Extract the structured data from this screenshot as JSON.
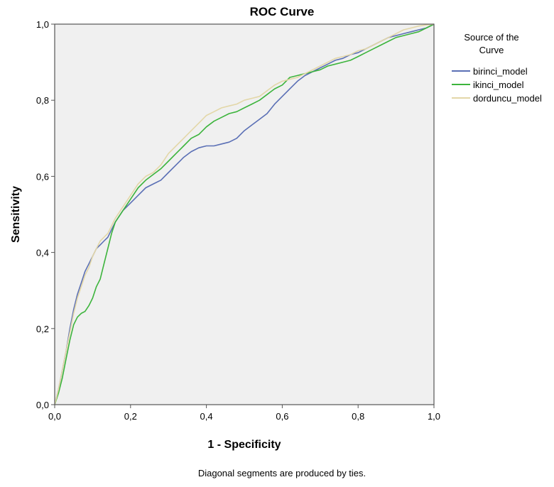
{
  "chart_data": {
    "type": "line",
    "title": "ROC Curve",
    "xlabel": "1 - Specificity",
    "ylabel": "Sensitivity",
    "xlim": [
      0,
      1
    ],
    "ylim": [
      0,
      1
    ],
    "x_ticks": [
      0,
      0.2,
      0.4,
      0.6,
      0.8,
      1.0
    ],
    "x_tick_labels": [
      "0,0",
      "0,2",
      "0,4",
      "0,6",
      "0,8",
      "1,0"
    ],
    "y_ticks": [
      0,
      0.2,
      0.4,
      0.6,
      0.8,
      1.0
    ],
    "y_tick_labels": [
      "0,0",
      "0,2",
      "0,4",
      "0,6",
      "0,8",
      "1,0"
    ],
    "grid": false,
    "plot_background": "#f0f0f0",
    "legend": {
      "title": "Source of the Curve",
      "title_lines": [
        "Source of the",
        "Curve"
      ],
      "placement": "right"
    },
    "footnote": "Diagonal segments are produced by ties.",
    "series": [
      {
        "name": "birinci_model",
        "color": "#5a6fb5",
        "x": [
          0,
          0.01,
          0.02,
          0.03,
          0.04,
          0.05,
          0.06,
          0.07,
          0.08,
          0.09,
          0.1,
          0.11,
          0.12,
          0.13,
          0.14,
          0.15,
          0.16,
          0.18,
          0.2,
          0.22,
          0.24,
          0.26,
          0.28,
          0.3,
          0.32,
          0.34,
          0.36,
          0.38,
          0.4,
          0.42,
          0.44,
          0.46,
          0.48,
          0.5,
          0.52,
          0.54,
          0.56,
          0.58,
          0.6,
          0.62,
          0.64,
          0.66,
          0.68,
          0.7,
          0.72,
          0.74,
          0.76,
          0.78,
          0.8,
          0.82,
          0.84,
          0.86,
          0.88,
          0.9,
          0.92,
          0.94,
          0.96,
          0.98,
          1.0
        ],
        "y": [
          0,
          0.04,
          0.09,
          0.14,
          0.2,
          0.25,
          0.29,
          0.32,
          0.35,
          0.37,
          0.39,
          0.41,
          0.42,
          0.43,
          0.44,
          0.46,
          0.48,
          0.51,
          0.53,
          0.55,
          0.57,
          0.58,
          0.59,
          0.61,
          0.63,
          0.65,
          0.665,
          0.675,
          0.68,
          0.68,
          0.685,
          0.69,
          0.7,
          0.72,
          0.735,
          0.75,
          0.765,
          0.79,
          0.81,
          0.83,
          0.85,
          0.865,
          0.875,
          0.885,
          0.895,
          0.905,
          0.91,
          0.92,
          0.925,
          0.935,
          0.945,
          0.955,
          0.965,
          0.97,
          0.975,
          0.98,
          0.985,
          0.99,
          1.0
        ]
      },
      {
        "name": "ikinci_model",
        "color": "#3cb43c",
        "x": [
          0,
          0.01,
          0.02,
          0.03,
          0.04,
          0.05,
          0.06,
          0.07,
          0.08,
          0.09,
          0.1,
          0.11,
          0.12,
          0.13,
          0.14,
          0.15,
          0.16,
          0.18,
          0.2,
          0.22,
          0.24,
          0.26,
          0.28,
          0.3,
          0.32,
          0.34,
          0.36,
          0.38,
          0.4,
          0.42,
          0.44,
          0.46,
          0.48,
          0.5,
          0.52,
          0.54,
          0.56,
          0.58,
          0.6,
          0.62,
          0.64,
          0.66,
          0.68,
          0.7,
          0.72,
          0.74,
          0.76,
          0.78,
          0.8,
          0.82,
          0.84,
          0.86,
          0.88,
          0.9,
          0.92,
          0.94,
          0.96,
          0.98,
          1.0
        ],
        "y": [
          0,
          0.03,
          0.07,
          0.12,
          0.17,
          0.21,
          0.23,
          0.24,
          0.245,
          0.26,
          0.28,
          0.31,
          0.33,
          0.37,
          0.41,
          0.45,
          0.48,
          0.51,
          0.54,
          0.57,
          0.59,
          0.605,
          0.62,
          0.64,
          0.66,
          0.68,
          0.7,
          0.71,
          0.73,
          0.745,
          0.755,
          0.765,
          0.77,
          0.78,
          0.79,
          0.8,
          0.815,
          0.83,
          0.84,
          0.86,
          0.865,
          0.87,
          0.875,
          0.88,
          0.89,
          0.895,
          0.9,
          0.905,
          0.915,
          0.925,
          0.935,
          0.945,
          0.955,
          0.965,
          0.97,
          0.975,
          0.98,
          0.99,
          1.0
        ]
      },
      {
        "name": "dorduncu_model",
        "color": "#e3d7a8",
        "x": [
          0,
          0.01,
          0.02,
          0.03,
          0.04,
          0.05,
          0.06,
          0.07,
          0.08,
          0.09,
          0.1,
          0.11,
          0.12,
          0.13,
          0.14,
          0.15,
          0.16,
          0.18,
          0.2,
          0.22,
          0.24,
          0.26,
          0.28,
          0.3,
          0.32,
          0.34,
          0.36,
          0.38,
          0.4,
          0.42,
          0.44,
          0.46,
          0.48,
          0.5,
          0.52,
          0.54,
          0.56,
          0.58,
          0.6,
          0.62,
          0.64,
          0.66,
          0.68,
          0.7,
          0.72,
          0.74,
          0.76,
          0.78,
          0.8,
          0.82,
          0.84,
          0.86,
          0.88,
          0.9,
          0.92,
          0.94,
          0.96,
          0.98,
          1.0
        ],
        "y": [
          0,
          0.04,
          0.09,
          0.14,
          0.19,
          0.24,
          0.28,
          0.31,
          0.34,
          0.36,
          0.39,
          0.41,
          0.43,
          0.44,
          0.45,
          0.47,
          0.49,
          0.52,
          0.55,
          0.58,
          0.6,
          0.61,
          0.63,
          0.66,
          0.68,
          0.7,
          0.72,
          0.74,
          0.76,
          0.77,
          0.78,
          0.785,
          0.79,
          0.8,
          0.805,
          0.81,
          0.825,
          0.84,
          0.85,
          0.855,
          0.86,
          0.87,
          0.88,
          0.89,
          0.9,
          0.91,
          0.915,
          0.92,
          0.93,
          0.935,
          0.945,
          0.955,
          0.965,
          0.975,
          0.985,
          0.99,
          0.995,
          0.998,
          1.0
        ]
      }
    ]
  }
}
